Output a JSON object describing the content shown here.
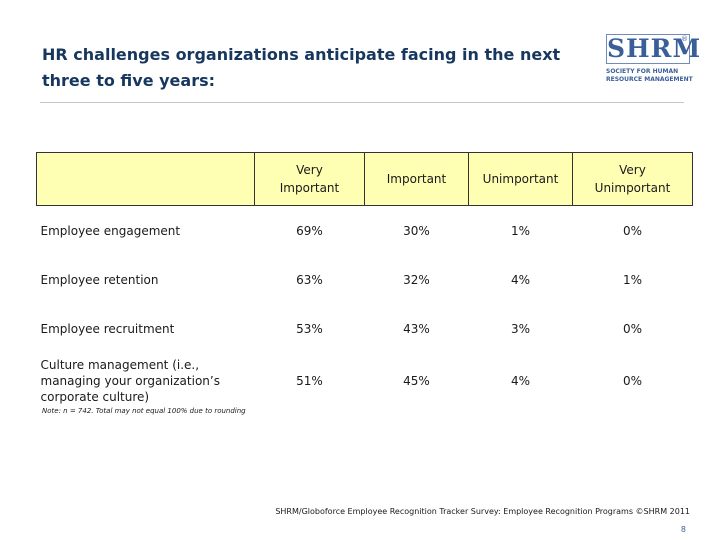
{
  "title": "HR challenges organizations anticipate facing in the next three to five years:",
  "logo": {
    "mark": "SHRM",
    "registered": "®",
    "line1": "SOCIETY FOR HUMAN",
    "line2": "RESOURCE MANAGEMENT"
  },
  "table": {
    "columns": [
      "",
      "Very Important",
      "Important",
      "Unimportant",
      "Very Unimportant"
    ],
    "rows": [
      {
        "label": "Employee engagement",
        "values": [
          "69%",
          "30%",
          "1%",
          "0%"
        ]
      },
      {
        "label": "Employee retention",
        "values": [
          "63%",
          "32%",
          "4%",
          "1%"
        ]
      },
      {
        "label": "Employee recruitment",
        "values": [
          "53%",
          "43%",
          "3%",
          "0%"
        ]
      },
      {
        "label": "Culture management (i.e., managing your organization’s corporate culture)",
        "values": [
          "51%",
          "45%",
          "4%",
          "0%"
        ]
      }
    ]
  },
  "note": "Note: n = 742. Total may not equal 100% due to rounding",
  "source": "SHRM/Globoforce Employee Recognition Tracker Survey: Employee Recognition Programs ©SHRM 2011",
  "page_number": "8",
  "colors": {
    "title": "#17375e",
    "header_fill": "#ffffb3",
    "logo": "#3a5f98"
  }
}
